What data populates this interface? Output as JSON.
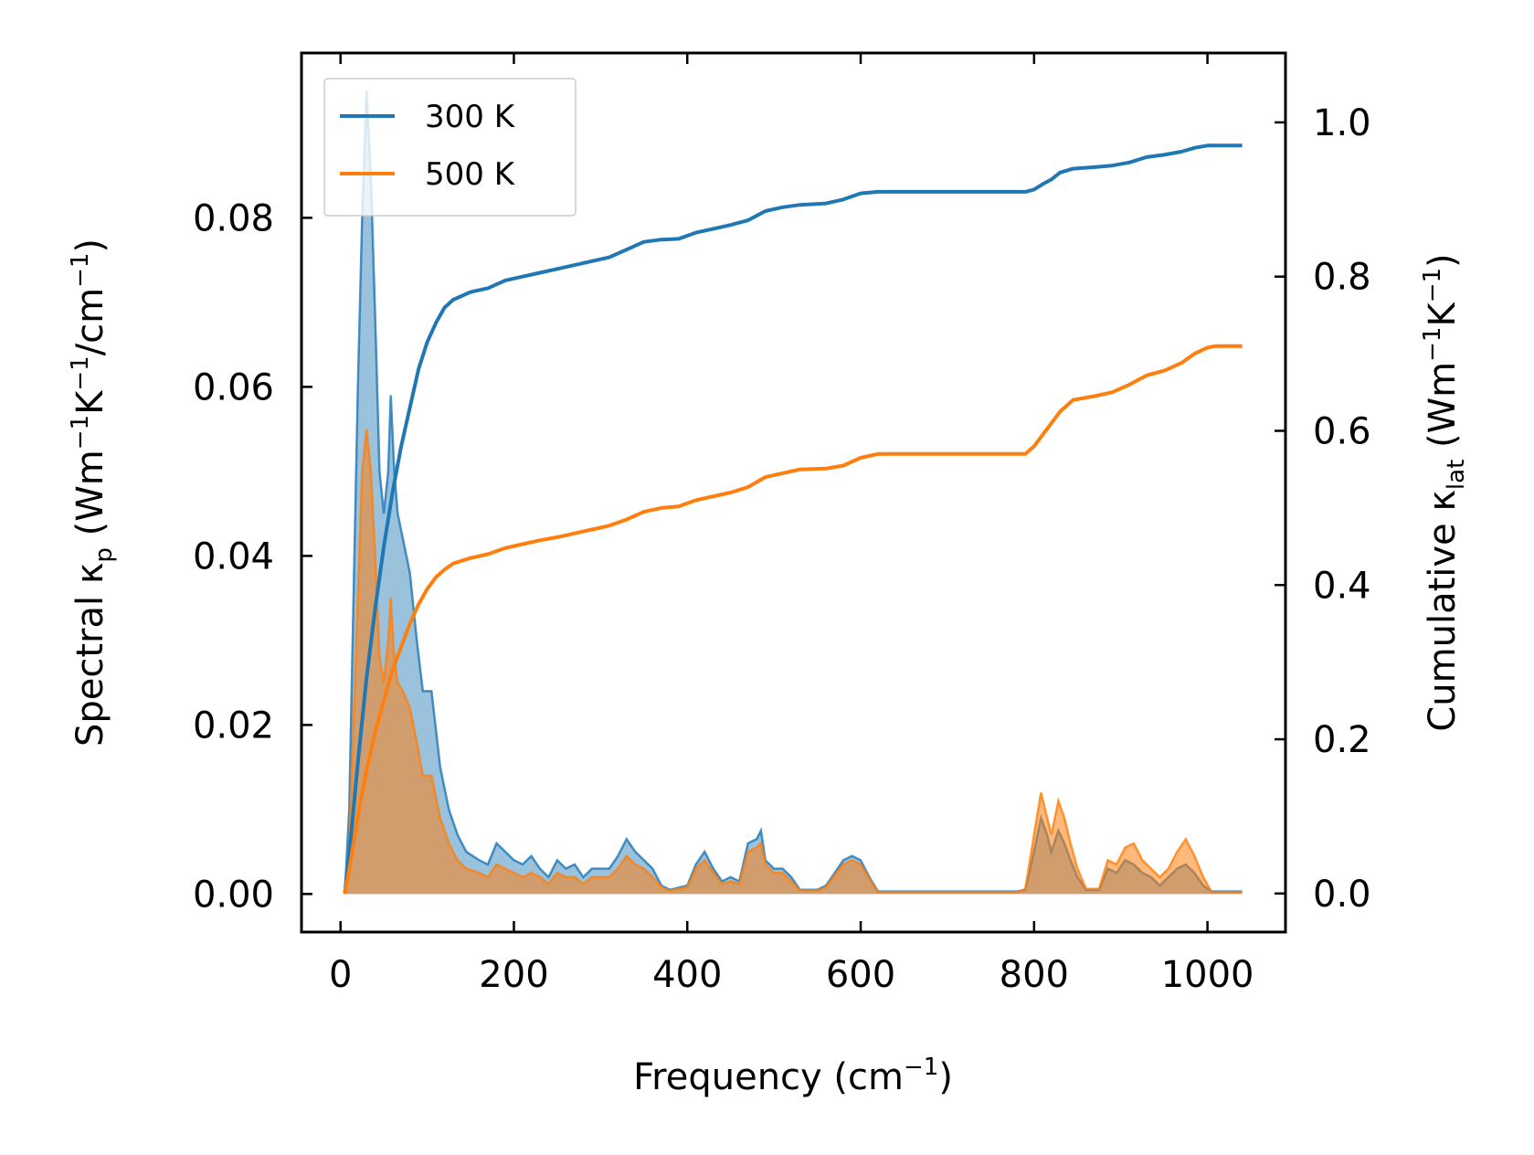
{
  "chart_data": {
    "type": "line",
    "x_axis": {
      "label": "Frequency (cm",
      "label_sup": "−1",
      "label_close": ")",
      "range": [
        -45,
        1090
      ],
      "ticks": [
        0,
        200,
        400,
        600,
        800,
        1000
      ]
    },
    "y_left": {
      "label_pre": "Spectral κ",
      "label_sub": "p",
      "label_mid1": " (Wm",
      "sup1": "−1",
      "label_mid2": "K",
      "sup2": "−1",
      "label_mid3": "/cm",
      "sup3": "−1",
      "label_close": ")",
      "range": [
        -0.0045,
        0.0995
      ],
      "ticks": [
        0.0,
        0.02,
        0.04,
        0.06,
        0.08
      ],
      "tick_labels": [
        "0.00",
        "0.02",
        "0.04",
        "0.06",
        "0.08"
      ]
    },
    "y_right": {
      "label_pre": "Cumulative κ",
      "label_sub": "lat",
      "label_mid1": " (Wm",
      "sup1": "−1",
      "label_mid2": "K",
      "sup2": "−1",
      "label_close": ")",
      "range": [
        -0.05,
        1.09
      ],
      "ticks": [
        0.0,
        0.2,
        0.4,
        0.6,
        0.8,
        1.0
      ],
      "tick_labels": [
        "0.0",
        "0.2",
        "0.4",
        "0.6",
        "0.8",
        "1.0"
      ]
    },
    "legend": {
      "position": "top-left",
      "entries": [
        {
          "name": "300 K",
          "color": "#1f77b4"
        },
        {
          "name": "500 K",
          "color": "#ff7f0e"
        }
      ]
    },
    "series": [
      {
        "name": "300 K",
        "color": "#1f77b4",
        "spectral": [
          [
            5,
            0
          ],
          [
            10,
            0.01
          ],
          [
            20,
            0.06
          ],
          [
            25,
            0.08
          ],
          [
            30,
            0.095
          ],
          [
            35,
            0.085
          ],
          [
            40,
            0.068
          ],
          [
            45,
            0.05
          ],
          [
            50,
            0.045
          ],
          [
            55,
            0.05
          ],
          [
            58,
            0.059
          ],
          [
            62,
            0.05
          ],
          [
            66,
            0.045
          ],
          [
            72,
            0.042
          ],
          [
            80,
            0.038
          ],
          [
            88,
            0.03
          ],
          [
            95,
            0.024
          ],
          [
            105,
            0.024
          ],
          [
            115,
            0.015
          ],
          [
            125,
            0.01
          ],
          [
            135,
            0.007
          ],
          [
            145,
            0.005
          ],
          [
            160,
            0.004
          ],
          [
            170,
            0.0035
          ],
          [
            180,
            0.006
          ],
          [
            190,
            0.005
          ],
          [
            200,
            0.004
          ],
          [
            210,
            0.0035
          ],
          [
            220,
            0.0045
          ],
          [
            230,
            0.003
          ],
          [
            240,
            0.002
          ],
          [
            250,
            0.004
          ],
          [
            260,
            0.003
          ],
          [
            270,
            0.0035
          ],
          [
            280,
            0.002
          ],
          [
            290,
            0.003
          ],
          [
            300,
            0.003
          ],
          [
            310,
            0.003
          ],
          [
            320,
            0.0045
          ],
          [
            330,
            0.0065
          ],
          [
            340,
            0.005
          ],
          [
            350,
            0.004
          ],
          [
            360,
            0.003
          ],
          [
            370,
            0.001
          ],
          [
            380,
            0.0005
          ],
          [
            400,
            0.001
          ],
          [
            410,
            0.0035
          ],
          [
            420,
            0.005
          ],
          [
            430,
            0.003
          ],
          [
            440,
            0.0015
          ],
          [
            450,
            0.002
          ],
          [
            460,
            0.0015
          ],
          [
            470,
            0.006
          ],
          [
            480,
            0.0065
          ],
          [
            485,
            0.0075
          ],
          [
            490,
            0.004
          ],
          [
            500,
            0.003
          ],
          [
            510,
            0.003
          ],
          [
            520,
            0.002
          ],
          [
            530,
            0.0005
          ],
          [
            550,
            0.0005
          ],
          [
            560,
            0.001
          ],
          [
            570,
            0.0025
          ],
          [
            580,
            0.004
          ],
          [
            590,
            0.0045
          ],
          [
            600,
            0.004
          ],
          [
            610,
            0.002
          ],
          [
            620,
            0.0003
          ],
          [
            780,
            0.0003
          ],
          [
            790,
            0.0005
          ],
          [
            800,
            0.005
          ],
          [
            808,
            0.009
          ],
          [
            815,
            0.007
          ],
          [
            820,
            0.005
          ],
          [
            828,
            0.0075
          ],
          [
            835,
            0.006
          ],
          [
            842,
            0.004
          ],
          [
            850,
            0.002
          ],
          [
            860,
            0.0005
          ],
          [
            875,
            0.0005
          ],
          [
            885,
            0.003
          ],
          [
            895,
            0.0025
          ],
          [
            905,
            0.004
          ],
          [
            915,
            0.0035
          ],
          [
            925,
            0.0025
          ],
          [
            935,
            0.002
          ],
          [
            945,
            0.001
          ],
          [
            955,
            0.002
          ],
          [
            965,
            0.003
          ],
          [
            975,
            0.0035
          ],
          [
            985,
            0.0025
          ],
          [
            995,
            0.001
          ],
          [
            1005,
            0.0003
          ],
          [
            1040,
            0.0003
          ]
        ],
        "cumulative": [
          [
            5,
            0
          ],
          [
            10,
            0.05
          ],
          [
            20,
            0.17
          ],
          [
            30,
            0.28
          ],
          [
            40,
            0.37
          ],
          [
            50,
            0.45
          ],
          [
            60,
            0.52
          ],
          [
            70,
            0.58
          ],
          [
            80,
            0.63
          ],
          [
            90,
            0.68
          ],
          [
            100,
            0.715
          ],
          [
            110,
            0.74
          ],
          [
            120,
            0.76
          ],
          [
            130,
            0.77
          ],
          [
            150,
            0.78
          ],
          [
            170,
            0.785
          ],
          [
            190,
            0.795
          ],
          [
            210,
            0.8
          ],
          [
            230,
            0.805
          ],
          [
            250,
            0.81
          ],
          [
            270,
            0.815
          ],
          [
            290,
            0.82
          ],
          [
            310,
            0.825
          ],
          [
            330,
            0.835
          ],
          [
            350,
            0.845
          ],
          [
            370,
            0.848
          ],
          [
            390,
            0.849
          ],
          [
            410,
            0.857
          ],
          [
            430,
            0.862
          ],
          [
            450,
            0.867
          ],
          [
            470,
            0.873
          ],
          [
            490,
            0.885
          ],
          [
            510,
            0.89
          ],
          [
            530,
            0.893
          ],
          [
            560,
            0.895
          ],
          [
            580,
            0.9
          ],
          [
            600,
            0.908
          ],
          [
            620,
            0.91
          ],
          [
            790,
            0.91
          ],
          [
            800,
            0.913
          ],
          [
            810,
            0.92
          ],
          [
            820,
            0.926
          ],
          [
            830,
            0.935
          ],
          [
            845,
            0.94
          ],
          [
            870,
            0.942
          ],
          [
            890,
            0.944
          ],
          [
            910,
            0.948
          ],
          [
            930,
            0.955
          ],
          [
            950,
            0.958
          ],
          [
            970,
            0.962
          ],
          [
            985,
            0.967
          ],
          [
            1000,
            0.97
          ],
          [
            1010,
            0.97
          ],
          [
            1040,
            0.97
          ]
        ]
      },
      {
        "name": "500 K",
        "color": "#ff7f0e",
        "spectral": [
          [
            5,
            0
          ],
          [
            10,
            0.005
          ],
          [
            20,
            0.035
          ],
          [
            25,
            0.05
          ],
          [
            30,
            0.055
          ],
          [
            35,
            0.05
          ],
          [
            40,
            0.04
          ],
          [
            45,
            0.028
          ],
          [
            50,
            0.025
          ],
          [
            55,
            0.03
          ],
          [
            58,
            0.035
          ],
          [
            62,
            0.028
          ],
          [
            66,
            0.025
          ],
          [
            72,
            0.024
          ],
          [
            80,
            0.022
          ],
          [
            88,
            0.018
          ],
          [
            95,
            0.014
          ],
          [
            105,
            0.014
          ],
          [
            115,
            0.009
          ],
          [
            125,
            0.006
          ],
          [
            135,
            0.004
          ],
          [
            145,
            0.003
          ],
          [
            160,
            0.0025
          ],
          [
            170,
            0.002
          ],
          [
            180,
            0.0035
          ],
          [
            190,
            0.003
          ],
          [
            200,
            0.0025
          ],
          [
            210,
            0.002
          ],
          [
            220,
            0.0025
          ],
          [
            230,
            0.002
          ],
          [
            240,
            0.0012
          ],
          [
            250,
            0.0025
          ],
          [
            260,
            0.002
          ],
          [
            270,
            0.002
          ],
          [
            280,
            0.0012
          ],
          [
            290,
            0.002
          ],
          [
            300,
            0.002
          ],
          [
            310,
            0.002
          ],
          [
            320,
            0.003
          ],
          [
            330,
            0.0045
          ],
          [
            340,
            0.0035
          ],
          [
            350,
            0.003
          ],
          [
            360,
            0.002
          ],
          [
            370,
            0.0008
          ],
          [
            380,
            0.0004
          ],
          [
            400,
            0.0008
          ],
          [
            410,
            0.003
          ],
          [
            420,
            0.004
          ],
          [
            430,
            0.0025
          ],
          [
            440,
            0.0012
          ],
          [
            450,
            0.0015
          ],
          [
            460,
            0.0012
          ],
          [
            470,
            0.005
          ],
          [
            480,
            0.0055
          ],
          [
            485,
            0.006
          ],
          [
            490,
            0.0035
          ],
          [
            500,
            0.0025
          ],
          [
            510,
            0.0025
          ],
          [
            520,
            0.0015
          ],
          [
            530,
            0.0004
          ],
          [
            550,
            0.0004
          ],
          [
            560,
            0.0008
          ],
          [
            570,
            0.0022
          ],
          [
            580,
            0.0035
          ],
          [
            590,
            0.004
          ],
          [
            600,
            0.0035
          ],
          [
            610,
            0.0018
          ],
          [
            620,
            0.0002
          ],
          [
            780,
            0.0002
          ],
          [
            790,
            0.0006
          ],
          [
            800,
            0.007
          ],
          [
            808,
            0.012
          ],
          [
            815,
            0.009
          ],
          [
            820,
            0.007
          ],
          [
            828,
            0.011
          ],
          [
            835,
            0.009
          ],
          [
            842,
            0.006
          ],
          [
            850,
            0.003
          ],
          [
            860,
            0.0006
          ],
          [
            875,
            0.0006
          ],
          [
            885,
            0.004
          ],
          [
            895,
            0.0035
          ],
          [
            905,
            0.0055
          ],
          [
            915,
            0.006
          ],
          [
            925,
            0.004
          ],
          [
            935,
            0.003
          ],
          [
            945,
            0.002
          ],
          [
            955,
            0.003
          ],
          [
            965,
            0.005
          ],
          [
            975,
            0.0065
          ],
          [
            985,
            0.0045
          ],
          [
            995,
            0.002
          ],
          [
            1005,
            0.0002
          ],
          [
            1040,
            0.0002
          ]
        ],
        "cumulative": [
          [
            5,
            0
          ],
          [
            10,
            0.03
          ],
          [
            20,
            0.1
          ],
          [
            30,
            0.16
          ],
          [
            40,
            0.21
          ],
          [
            50,
            0.25
          ],
          [
            60,
            0.29
          ],
          [
            70,
            0.32
          ],
          [
            80,
            0.35
          ],
          [
            90,
            0.375
          ],
          [
            100,
            0.395
          ],
          [
            110,
            0.41
          ],
          [
            120,
            0.42
          ],
          [
            130,
            0.428
          ],
          [
            150,
            0.435
          ],
          [
            170,
            0.44
          ],
          [
            190,
            0.448
          ],
          [
            210,
            0.453
          ],
          [
            230,
            0.458
          ],
          [
            250,
            0.462
          ],
          [
            270,
            0.467
          ],
          [
            290,
            0.472
          ],
          [
            310,
            0.477
          ],
          [
            330,
            0.485
          ],
          [
            350,
            0.495
          ],
          [
            370,
            0.5
          ],
          [
            390,
            0.502
          ],
          [
            410,
            0.51
          ],
          [
            430,
            0.515
          ],
          [
            450,
            0.52
          ],
          [
            470,
            0.527
          ],
          [
            490,
            0.54
          ],
          [
            510,
            0.545
          ],
          [
            530,
            0.55
          ],
          [
            560,
            0.551
          ],
          [
            580,
            0.555
          ],
          [
            600,
            0.565
          ],
          [
            620,
            0.57
          ],
          [
            790,
            0.57
          ],
          [
            800,
            0.58
          ],
          [
            810,
            0.595
          ],
          [
            820,
            0.61
          ],
          [
            830,
            0.625
          ],
          [
            845,
            0.64
          ],
          [
            870,
            0.645
          ],
          [
            890,
            0.65
          ],
          [
            910,
            0.66
          ],
          [
            930,
            0.672
          ],
          [
            950,
            0.678
          ],
          [
            970,
            0.688
          ],
          [
            985,
            0.7
          ],
          [
            1000,
            0.708
          ],
          [
            1010,
            0.71
          ],
          [
            1040,
            0.71
          ]
        ]
      }
    ]
  }
}
